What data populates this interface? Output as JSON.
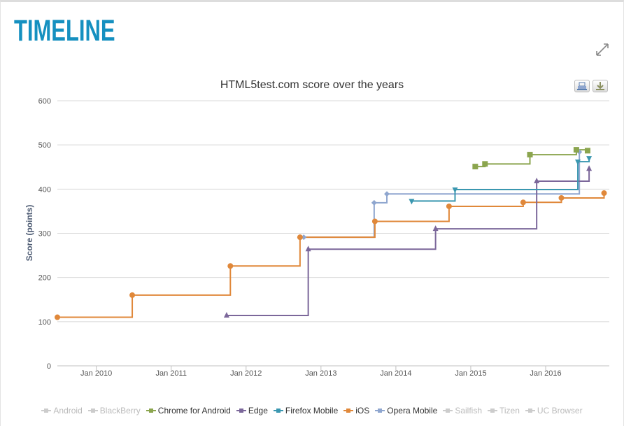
{
  "page_title": "TIMELINE",
  "icons": {
    "expand": "expand-icon",
    "print": "print-icon",
    "download": "download-icon"
  },
  "chart_data": {
    "type": "line",
    "step": true,
    "title": "HTML5test.com score over the years",
    "xlabel": "",
    "ylabel": "Score (points)",
    "ylim": [
      0,
      600
    ],
    "yticks": [
      "0",
      "100",
      "200",
      "300",
      "400",
      "500",
      "600"
    ],
    "xlim": [
      2009.48,
      2016.85
    ],
    "xticks": [
      {
        "label": "Jan 2010",
        "x": 2010
      },
      {
        "label": "Jan 2011",
        "x": 2011
      },
      {
        "label": "Jan 2012",
        "x": 2012
      },
      {
        "label": "Jan 2013",
        "x": 2013
      },
      {
        "label": "Jan 2014",
        "x": 2014
      },
      {
        "label": "Jan 2015",
        "x": 2015
      },
      {
        "label": "Jan 2016",
        "x": 2016
      }
    ],
    "grid": true,
    "legend_position": "bottom",
    "series": [
      {
        "name": "Android",
        "color": "#cccccc",
        "marker": "circle",
        "visible": false,
        "points": []
      },
      {
        "name": "BlackBerry",
        "color": "#cccccc",
        "marker": "diamond",
        "visible": false,
        "points": []
      },
      {
        "name": "Chrome for Android",
        "color": "#8ba54e",
        "marker": "square",
        "visible": true,
        "points": [
          [
            2015.06,
            451
          ],
          [
            2015.19,
            457
          ],
          [
            2015.79,
            478
          ],
          [
            2016.41,
            489
          ],
          [
            2016.56,
            487
          ]
        ]
      },
      {
        "name": "Edge",
        "color": "#7b679a",
        "marker": "triangle",
        "visible": true,
        "points": [
          [
            2011.74,
            114
          ],
          [
            2012.83,
            264
          ],
          [
            2014.53,
            310
          ],
          [
            2015.88,
            418
          ],
          [
            2016.58,
            446
          ]
        ]
      },
      {
        "name": "Firefox Mobile",
        "color": "#3a97b0",
        "marker": "triangle-down",
        "visible": true,
        "points": [
          [
            2014.21,
            373
          ],
          [
            2014.79,
            399
          ],
          [
            2016.43,
            462
          ],
          [
            2016.58,
            470
          ]
        ]
      },
      {
        "name": "iOS",
        "color": "#e0883a",
        "marker": "circle",
        "visible": true,
        "points": [
          [
            2009.48,
            110
          ],
          [
            2010.48,
            160
          ],
          [
            2011.79,
            226
          ],
          [
            2012.72,
            291
          ],
          [
            2013.72,
            327
          ],
          [
            2014.71,
            361
          ],
          [
            2015.7,
            370
          ],
          [
            2016.21,
            380
          ],
          [
            2016.78,
            391
          ]
        ]
      },
      {
        "name": "Opera Mobile",
        "color": "#8fa6cf",
        "marker": "diamond",
        "visible": true,
        "points": [
          [
            2012.77,
            291
          ],
          [
            2013.71,
            369
          ],
          [
            2013.88,
            389
          ],
          [
            2016.45,
            484
          ]
        ]
      },
      {
        "name": "Sailfish",
        "color": "#cccccc",
        "marker": "square",
        "visible": false,
        "points": []
      },
      {
        "name": "Tizen",
        "color": "#cccccc",
        "marker": "triangle",
        "visible": false,
        "points": []
      },
      {
        "name": "UC Browser",
        "color": "#cccccc",
        "marker": "triangle-down",
        "visible": false,
        "points": []
      }
    ]
  }
}
